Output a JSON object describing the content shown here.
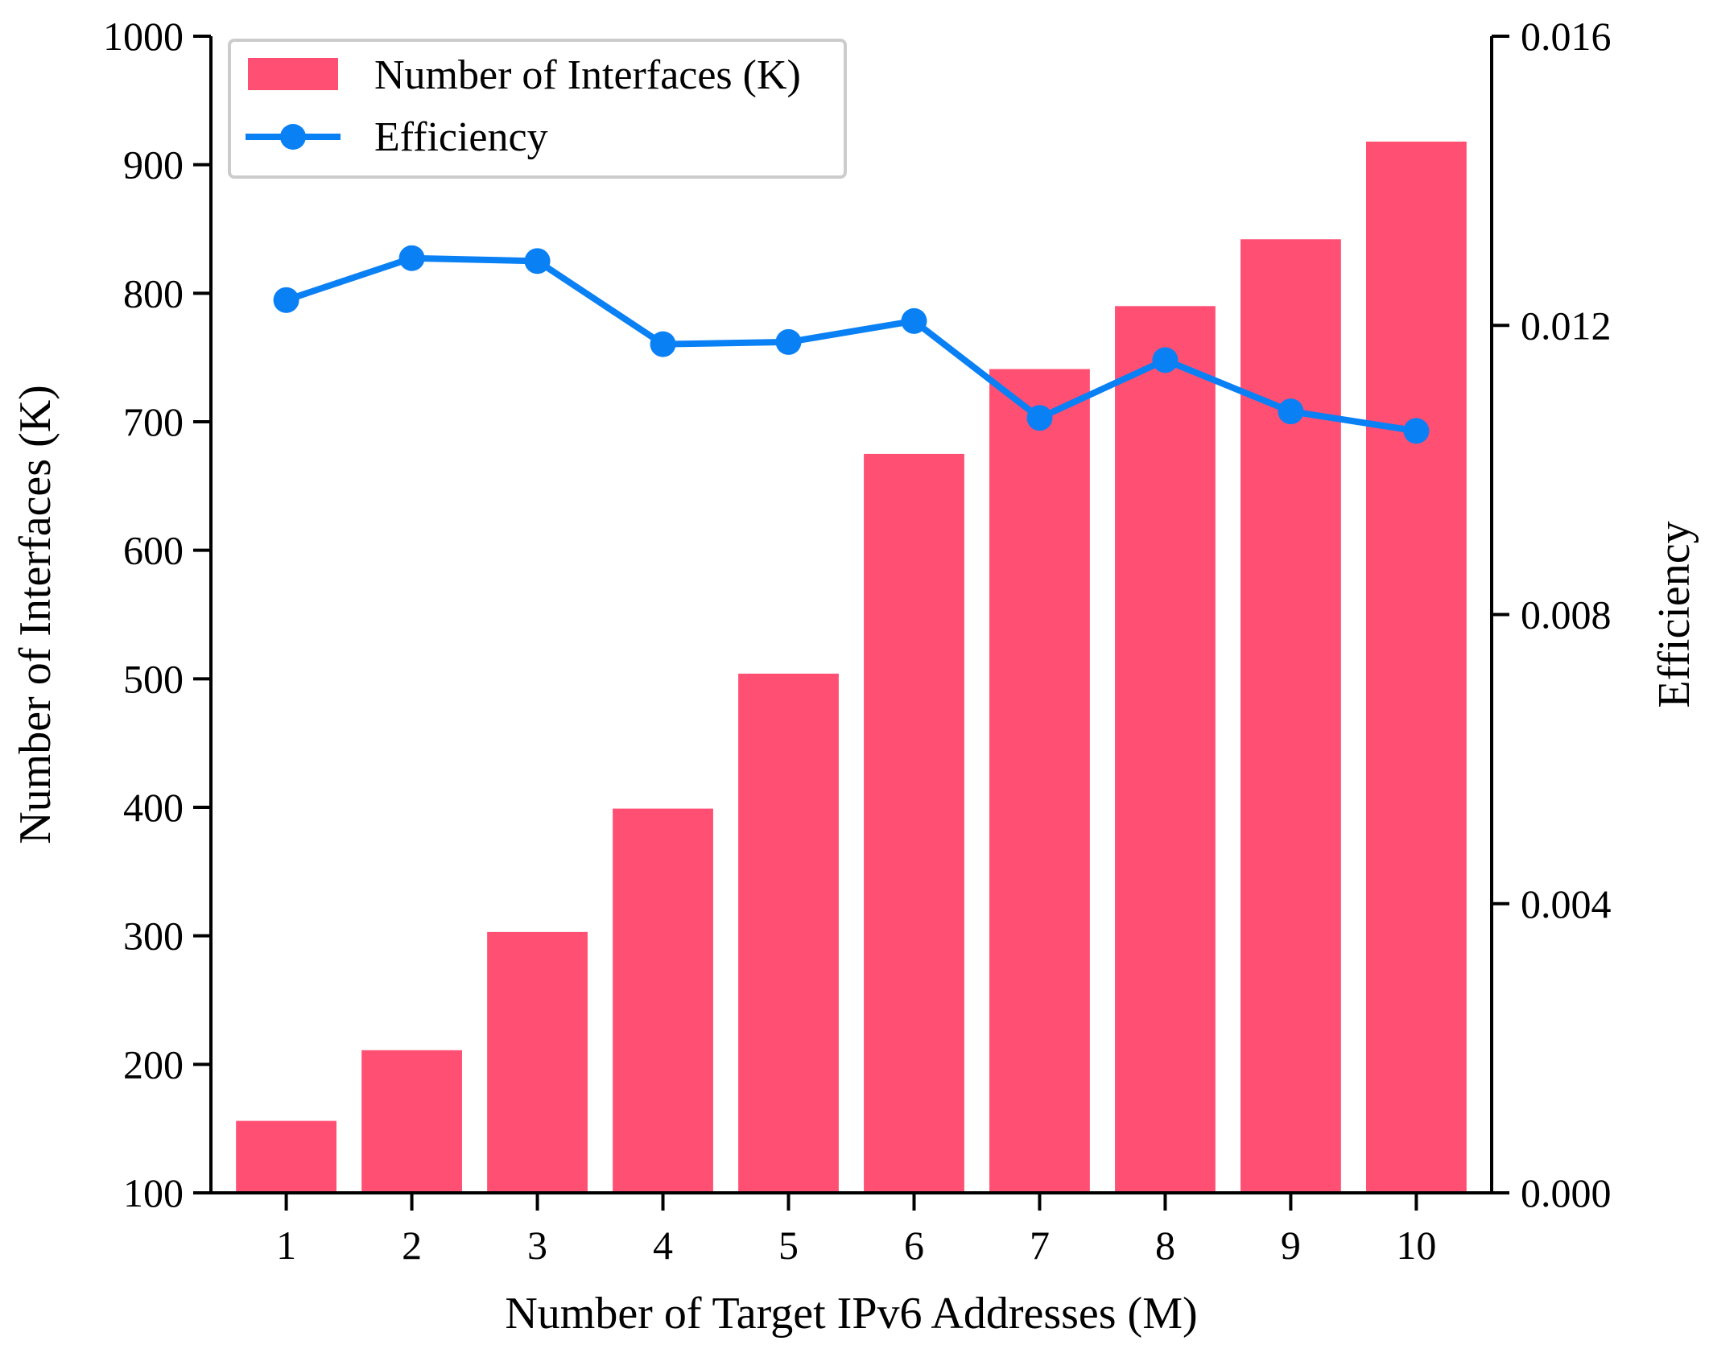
{
  "chart_data": {
    "type": "bar",
    "xlabel": "Number of Target IPv6 Addresses (M)",
    "ylabel": "Number of Interfaces (K)",
    "y2label": "Efficiency",
    "categories": [
      "1",
      "2",
      "3",
      "4",
      "5",
      "6",
      "7",
      "8",
      "9",
      "10"
    ],
    "ylim": [
      100,
      1000
    ],
    "yticks": [
      "100",
      "200",
      "300",
      "400",
      "500",
      "600",
      "700",
      "800",
      "900",
      "1000"
    ],
    "y2lim": [
      0.0,
      0.016
    ],
    "y2ticks": [
      "0.000",
      "0.004",
      "0.008",
      "0.012",
      "0.016"
    ],
    "grid": false,
    "legend_position": "top-left",
    "series": [
      {
        "name": "Number of Interfaces (K)",
        "kind": "bar",
        "axis": "left",
        "color": "#ff4f73",
        "values": [
          156,
          211,
          303,
          399,
          504,
          675,
          741,
          790,
          842,
          918
        ]
      },
      {
        "name": "Efficiency",
        "kind": "line",
        "axis": "right",
        "marker": "circle",
        "color": "#0a80f5",
        "values": [
          0.01235,
          0.01293,
          0.01289,
          0.01174,
          0.01177,
          0.01206,
          0.01072,
          0.01152,
          0.01081,
          0.01054
        ]
      }
    ]
  }
}
